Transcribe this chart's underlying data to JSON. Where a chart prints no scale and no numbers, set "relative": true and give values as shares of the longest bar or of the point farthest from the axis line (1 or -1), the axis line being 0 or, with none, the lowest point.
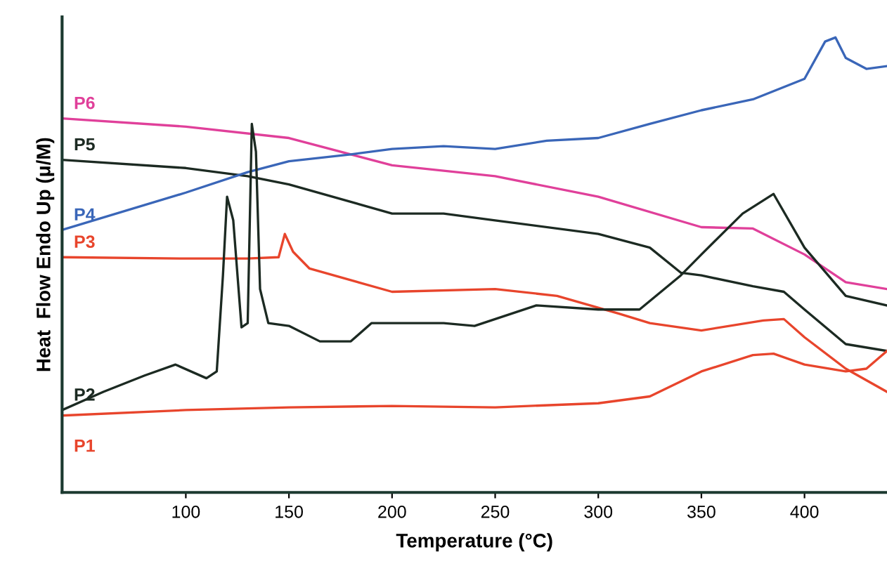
{
  "chart_data": {
    "type": "line",
    "relative": true,
    "xlabel": "Temperature (°C)",
    "ylabel": "Heat  Flow Endo Up (μ/M)",
    "xlim": [
      40,
      440
    ],
    "xticks": [
      100,
      150,
      200,
      250,
      300,
      350,
      400
    ],
    "tick_labels": "x",
    "grid": false,
    "legend": false,
    "marker": "none",
    "line_style": "solid",
    "series": [
      {
        "name": "P6",
        "color": "#e0409a",
        "x": [
          40,
          100,
          150,
          200,
          250,
          300,
          350,
          375,
          400,
          420,
          440
        ],
        "values": [
          0.822,
          0.804,
          0.779,
          0.719,
          0.695,
          0.65,
          0.583,
          0.58,
          0.523,
          0.462,
          0.447
        ]
      },
      {
        "name": "P5",
        "color": "#1c2a22",
        "x": [
          40,
          100,
          130,
          150,
          200,
          225,
          250,
          300,
          325,
          340,
          350,
          375,
          390,
          400,
          420,
          440
        ],
        "values": [
          0.731,
          0.713,
          0.695,
          0.677,
          0.613,
          0.613,
          0.598,
          0.568,
          0.538,
          0.483,
          0.477,
          0.453,
          0.441,
          0.402,
          0.326,
          0.311
        ]
      },
      {
        "name": "P4",
        "color": "#3a66b8",
        "x": [
          40,
          100,
          130,
          150,
          180,
          200,
          225,
          250,
          275,
          300,
          325,
          350,
          375,
          400,
          410,
          415,
          420,
          430,
          440
        ],
        "values": [
          0.577,
          0.659,
          0.704,
          0.728,
          0.743,
          0.755,
          0.761,
          0.755,
          0.773,
          0.779,
          0.81,
          0.84,
          0.864,
          0.909,
          0.991,
          1,
          0.955,
          0.931,
          0.937
        ]
      },
      {
        "name": "P3",
        "color": "#e8452c",
        "x": [
          40,
          100,
          130,
          145,
          148,
          152,
          160,
          200,
          250,
          280,
          310,
          325,
          350,
          380,
          390,
          400,
          420,
          440
        ],
        "values": [
          0.517,
          0.514,
          0.514,
          0.517,
          0.568,
          0.529,
          0.492,
          0.441,
          0.447,
          0.432,
          0.393,
          0.372,
          0.356,
          0.378,
          0.381,
          0.341,
          0.272,
          0.221
        ]
      },
      {
        "name": "P2",
        "color": "#1c2a22",
        "x": [
          40,
          60,
          80,
          95,
          110,
          115,
          118,
          120,
          123,
          127,
          130,
          132,
          134,
          136,
          140,
          150,
          165,
          180,
          190,
          200,
          225,
          240,
          270,
          300,
          320,
          340,
          350,
          370,
          385,
          400,
          420,
          440
        ],
        "values": [
          0.181,
          0.221,
          0.257,
          0.281,
          0.251,
          0.266,
          0.477,
          0.65,
          0.598,
          0.363,
          0.372,
          0.81,
          0.749,
          0.447,
          0.372,
          0.366,
          0.332,
          0.332,
          0.372,
          0.372,
          0.372,
          0.366,
          0.411,
          0.402,
          0.402,
          0.477,
          0.523,
          0.613,
          0.656,
          0.538,
          0.432,
          0.411
        ]
      },
      {
        "name": "P1",
        "color": "#e8452c",
        "x": [
          40,
          100,
          150,
          200,
          250,
          300,
          325,
          350,
          375,
          385,
          400,
          420,
          430,
          440
        ],
        "values": [
          0.169,
          0.181,
          0.187,
          0.19,
          0.187,
          0.196,
          0.211,
          0.266,
          0.302,
          0.305,
          0.281,
          0.266,
          0.272,
          0.311
        ]
      }
    ]
  }
}
